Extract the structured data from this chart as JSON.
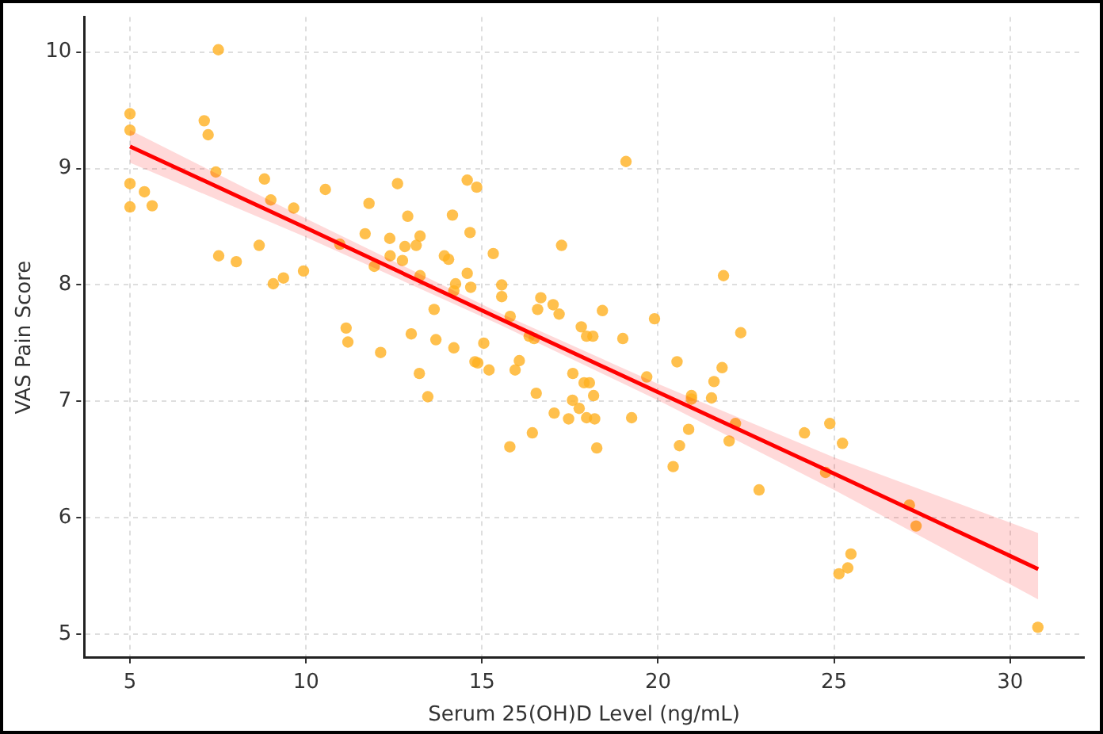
{
  "chart_data": {
    "type": "scatter",
    "xlabel": "Serum 25(OH)D Level (ng/mL)",
    "ylabel": "VAS Pain Score",
    "xlim": [
      3.7,
      32.1
    ],
    "ylim": [
      4.8,
      10.3
    ],
    "xticks": [
      5,
      10,
      15,
      20,
      25,
      30
    ],
    "yticks": [
      5,
      6,
      7,
      8,
      9,
      10
    ],
    "grid": true,
    "series": [
      {
        "color": "#ffb020",
        "marker": "circle",
        "x": [
          5,
          5,
          5,
          5,
          5.41,
          5.63,
          7.51,
          7.11,
          7.22,
          7.44,
          7.52,
          8.02,
          8.67,
          8.82,
          9.0,
          9.07,
          9.36,
          9.65,
          9.93,
          10.55,
          10.96,
          11.14,
          11.19,
          11.68,
          11.79,
          11.94,
          12.12,
          12.38,
          12.39,
          12.6,
          12.74,
          12.81,
          12.89,
          12.99,
          13.13,
          13.24,
          13.24,
          13.64,
          13.69,
          13.22,
          13.46,
          14.2,
          14.8,
          14.16,
          14.58,
          14.85,
          14.66,
          13.93,
          14.05,
          14.58,
          14.25,
          14.68,
          14.2,
          15.32,
          15.05,
          14.88,
          15.2,
          15.56,
          15.56,
          15.8,
          16.34,
          16.48,
          16.67,
          16.58,
          17.02,
          17.19,
          17.26,
          17.82,
          17.97,
          18.15,
          18.42,
          19.0,
          19.09,
          19.9,
          16.06,
          15.94,
          16.54,
          17.58,
          17.9,
          18.05,
          17.57,
          17.76,
          18.17,
          17.05,
          17.46,
          17.97,
          18.2,
          16.43,
          15.79,
          18.26,
          19.25,
          19.68,
          20.54,
          20.95,
          20.95,
          20.87,
          20.61,
          20.43,
          21.52,
          21.59,
          21.82,
          21.86,
          22.35,
          22.2,
          22.02,
          22.87,
          24.16,
          24.88,
          25.24,
          24.76,
          27.14,
          27.33,
          25.48,
          25.39,
          25.14,
          30.79
        ],
        "values": [
          9.47,
          9.33,
          8.87,
          8.67,
          8.8,
          8.68,
          10.02,
          9.41,
          9.29,
          8.97,
          8.25,
          8.2,
          8.34,
          8.91,
          8.73,
          8.01,
          8.06,
          8.66,
          8.12,
          8.82,
          8.35,
          7.63,
          7.51,
          8.44,
          8.7,
          8.16,
          7.42,
          8.4,
          8.25,
          8.87,
          8.21,
          8.33,
          8.59,
          7.58,
          8.34,
          8.42,
          8.08,
          7.79,
          7.53,
          7.24,
          7.04,
          7.46,
          7.34,
          8.6,
          8.9,
          8.84,
          8.45,
          8.25,
          8.22,
          8.1,
          8.01,
          7.98,
          7.95,
          8.27,
          7.5,
          7.33,
          7.27,
          8.0,
          7.9,
          7.73,
          7.56,
          7.54,
          7.89,
          7.79,
          7.83,
          7.75,
          8.34,
          7.64,
          7.56,
          7.56,
          7.78,
          7.54,
          9.06,
          7.71,
          7.35,
          7.27,
          7.07,
          7.24,
          7.16,
          7.16,
          7.01,
          6.94,
          7.05,
          6.9,
          6.85,
          6.86,
          6.85,
          6.73,
          6.61,
          6.6,
          6.86,
          7.21,
          7.34,
          7.05,
          7.02,
          6.76,
          6.62,
          6.44,
          7.03,
          7.17,
          7.29,
          8.08,
          7.59,
          6.81,
          6.66,
          6.24,
          6.73,
          6.81,
          6.64,
          6.39,
          6.11,
          5.93,
          5.69,
          5.57,
          5.52,
          5.06
        ]
      },
      {
        "type": "line",
        "color": "#ff0000",
        "x": [
          5,
          10,
          15.5,
          20,
          25,
          30.8
        ],
        "values": [
          9.19,
          8.49,
          7.71,
          7.08,
          6.38,
          5.56
        ],
        "lower": [
          9.05,
          8.41,
          7.66,
          7.01,
          6.24,
          5.3
        ],
        "upper": [
          9.33,
          8.57,
          7.76,
          7.15,
          6.52,
          5.87
        ]
      }
    ]
  }
}
